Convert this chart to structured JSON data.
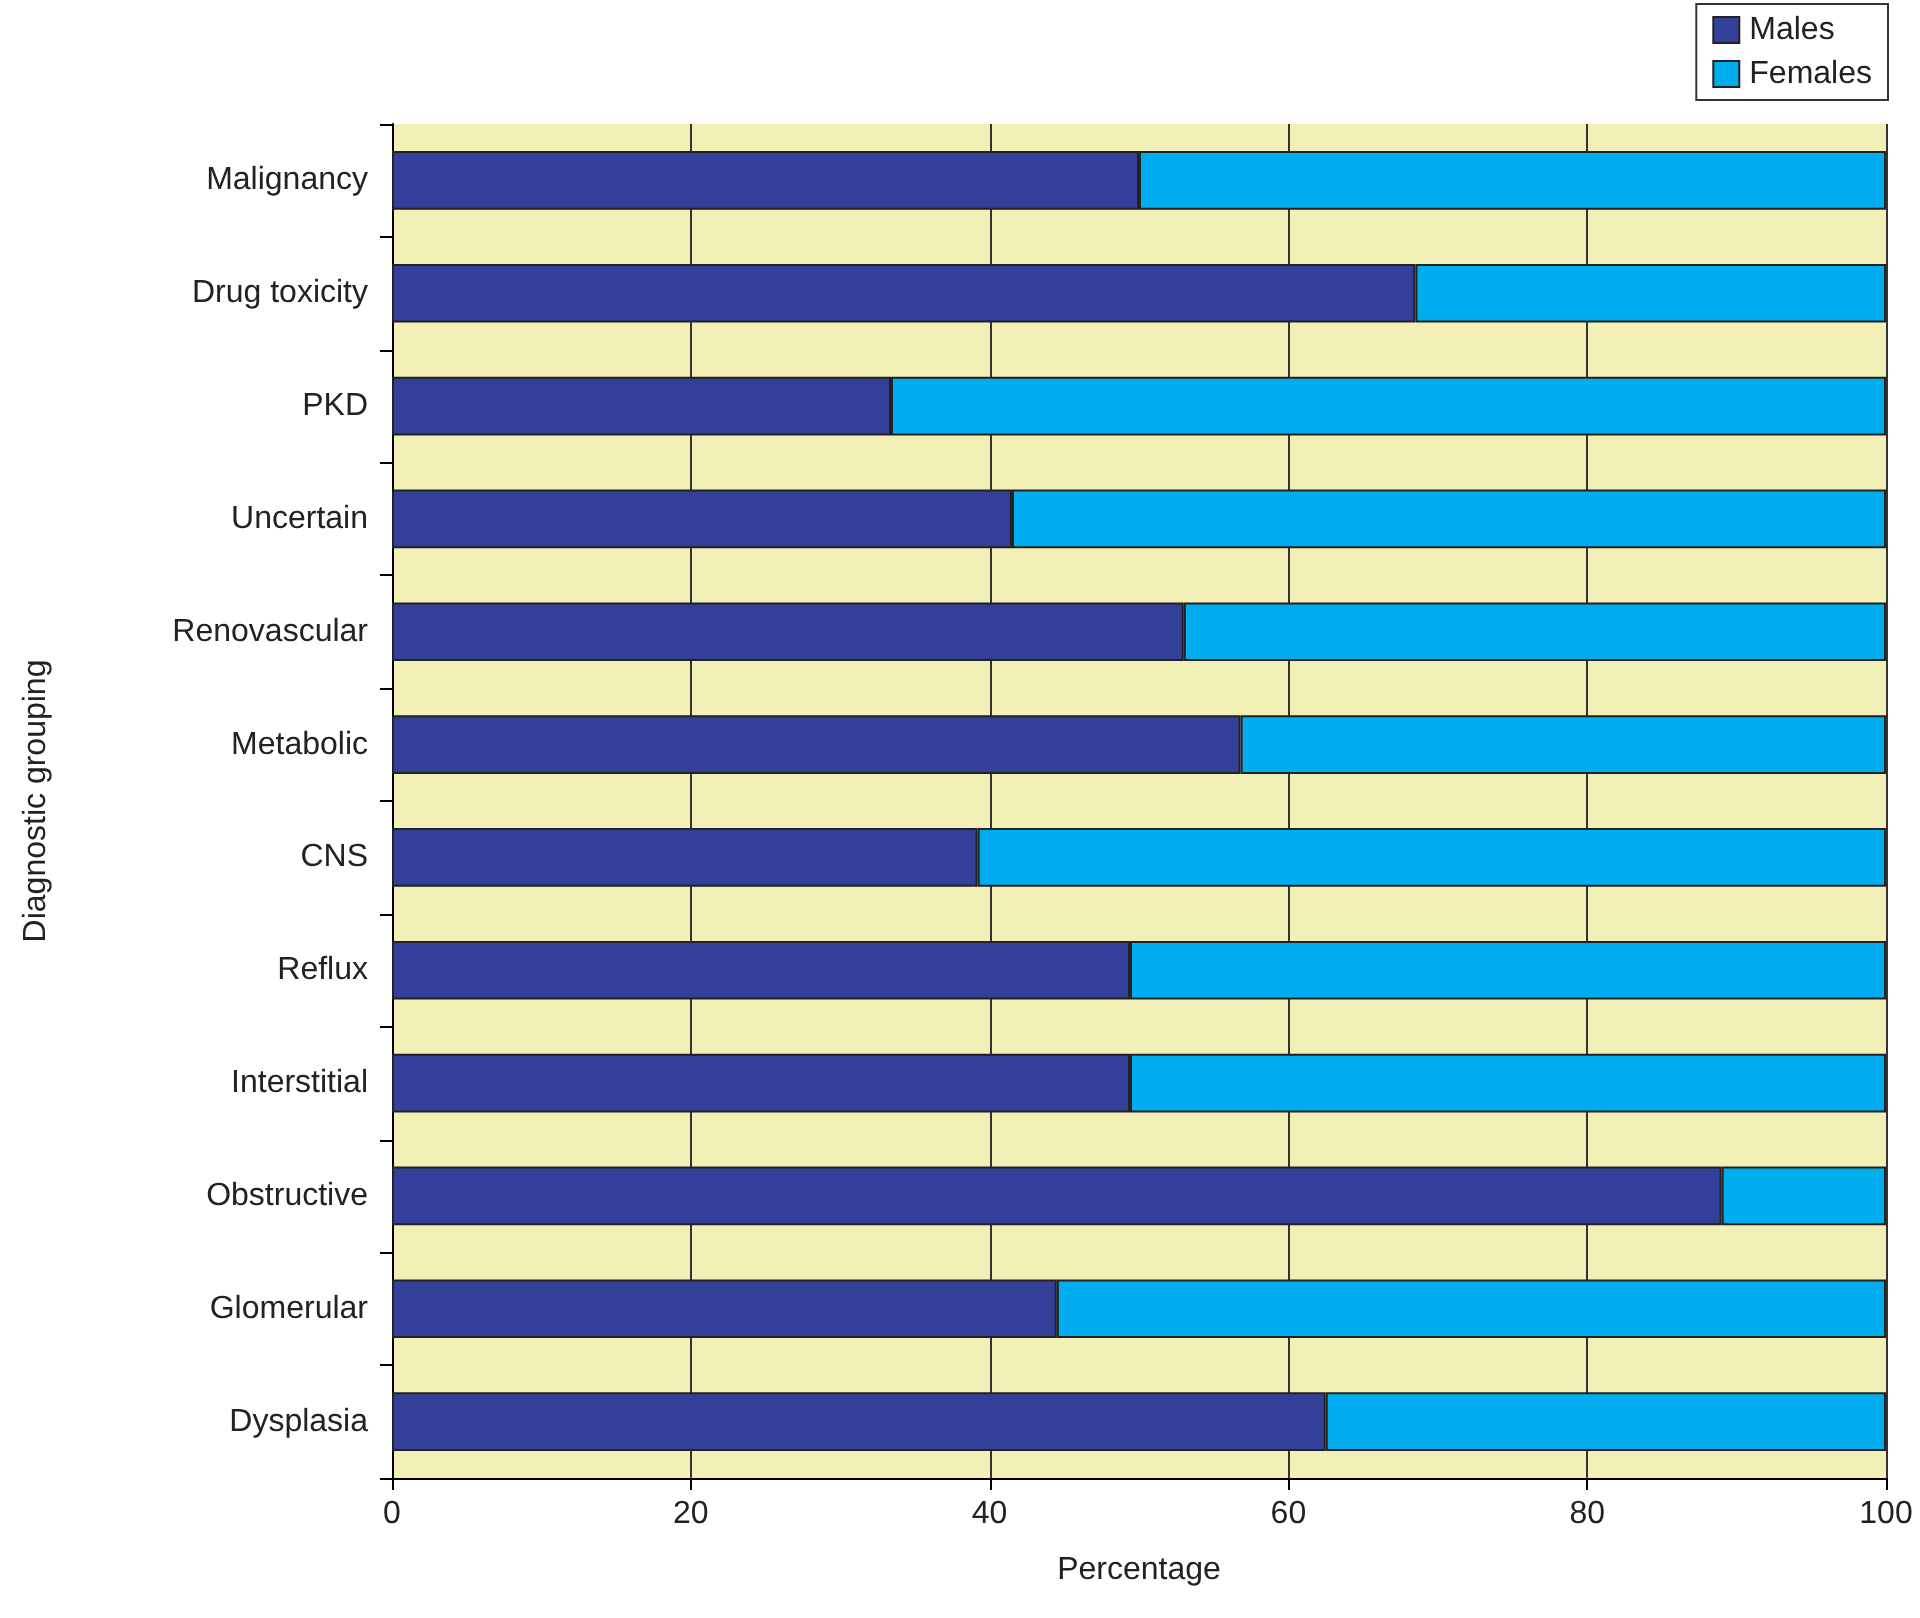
{
  "chart_data": {
    "type": "bar",
    "orientation": "horizontal",
    "stacked": true,
    "xlabel": "Percentage",
    "ylabel": "Diagnostic grouping",
    "categories": [
      "Malignancy",
      "Drug toxicity",
      "PKD",
      "Uncertain",
      "Renovascular",
      "Metabolic",
      "CNS",
      "Reflux",
      "Interstitial",
      "Obstructive",
      "Glomerular",
      "Dysplasia"
    ],
    "series": [
      {
        "name": "Males",
        "color": "#333f99",
        "values": [
          50,
          68.5,
          33.4,
          41.5,
          53,
          56.8,
          39.2,
          49.4,
          49.4,
          89,
          44.5,
          62.5
        ]
      },
      {
        "name": "Females",
        "color": "#00aeef",
        "values": [
          50,
          31.5,
          66.6,
          58.5,
          47,
          43.2,
          60.8,
          50.6,
          50.6,
          11,
          55.5,
          37.5
        ]
      }
    ],
    "xlim": [
      0,
      100
    ],
    "xticks": [
      0,
      20,
      40,
      60,
      80,
      100
    ],
    "grid": "x",
    "legend": "top right"
  }
}
